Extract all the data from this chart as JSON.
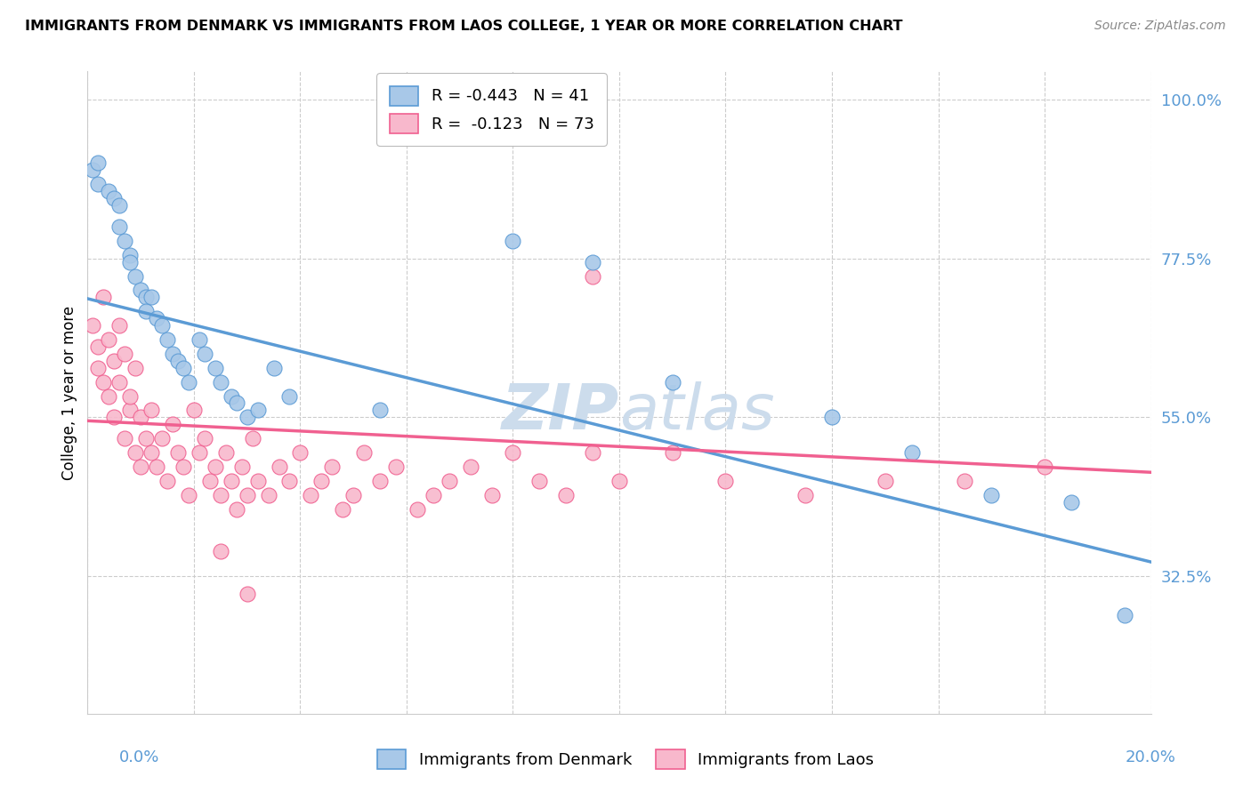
{
  "title": "IMMIGRANTS FROM DENMARK VS IMMIGRANTS FROM LAOS COLLEGE, 1 YEAR OR MORE CORRELATION CHART",
  "source": "Source: ZipAtlas.com",
  "ylabel": "College, 1 year or more",
  "right_yticks": [
    "100.0%",
    "77.5%",
    "55.0%",
    "32.5%"
  ],
  "right_ytick_vals": [
    1.0,
    0.775,
    0.55,
    0.325
  ],
  "xmin": 0.0,
  "xmax": 0.2,
  "ymin": 0.13,
  "ymax": 1.04,
  "legend_r_denmark": "-0.443",
  "legend_n_denmark": "41",
  "legend_r_laos": "-0.123",
  "legend_n_laos": "73",
  "denmark_color": "#a8c8e8",
  "laos_color": "#f8b8cc",
  "denmark_line_color": "#5b9bd5",
  "laos_line_color": "#f06090",
  "right_axis_color": "#5b9bd5",
  "watermark_color": "#ccdcec",
  "dk_line_x0": 0.0,
  "dk_line_y0": 0.718,
  "dk_line_x1": 0.2,
  "dk_line_y1": 0.345,
  "laos_line_x0": 0.0,
  "laos_line_y0": 0.545,
  "laos_line_x1": 0.2,
  "laos_line_y1": 0.472,
  "denmark_x": [
    0.001,
    0.002,
    0.002,
    0.004,
    0.005,
    0.006,
    0.006,
    0.007,
    0.008,
    0.008,
    0.009,
    0.01,
    0.011,
    0.011,
    0.012,
    0.013,
    0.014,
    0.015,
    0.016,
    0.017,
    0.018,
    0.019,
    0.021,
    0.022,
    0.024,
    0.025,
    0.027,
    0.028,
    0.03,
    0.032,
    0.035,
    0.038,
    0.055,
    0.08,
    0.095,
    0.11,
    0.14,
    0.155,
    0.17,
    0.185,
    0.195
  ],
  "denmark_y": [
    0.9,
    0.91,
    0.88,
    0.87,
    0.86,
    0.85,
    0.82,
    0.8,
    0.78,
    0.77,
    0.75,
    0.73,
    0.72,
    0.7,
    0.72,
    0.69,
    0.68,
    0.66,
    0.64,
    0.63,
    0.62,
    0.6,
    0.66,
    0.64,
    0.62,
    0.6,
    0.58,
    0.57,
    0.55,
    0.56,
    0.62,
    0.58,
    0.56,
    0.8,
    0.77,
    0.6,
    0.55,
    0.5,
    0.44,
    0.43,
    0.27
  ],
  "laos_x": [
    0.001,
    0.002,
    0.002,
    0.003,
    0.003,
    0.004,
    0.004,
    0.005,
    0.005,
    0.006,
    0.006,
    0.007,
    0.007,
    0.008,
    0.008,
    0.009,
    0.009,
    0.01,
    0.01,
    0.011,
    0.012,
    0.012,
    0.013,
    0.014,
    0.015,
    0.016,
    0.017,
    0.018,
    0.019,
    0.02,
    0.021,
    0.022,
    0.023,
    0.024,
    0.025,
    0.026,
    0.027,
    0.028,
    0.029,
    0.03,
    0.031,
    0.032,
    0.034,
    0.036,
    0.038,
    0.04,
    0.042,
    0.044,
    0.046,
    0.048,
    0.05,
    0.052,
    0.055,
    0.058,
    0.062,
    0.065,
    0.068,
    0.072,
    0.076,
    0.08,
    0.085,
    0.09,
    0.095,
    0.1,
    0.11,
    0.12,
    0.135,
    0.15,
    0.165,
    0.18,
    0.025,
    0.03,
    0.095
  ],
  "laos_y": [
    0.68,
    0.62,
    0.65,
    0.6,
    0.72,
    0.66,
    0.58,
    0.63,
    0.55,
    0.68,
    0.6,
    0.52,
    0.64,
    0.56,
    0.58,
    0.5,
    0.62,
    0.55,
    0.48,
    0.52,
    0.5,
    0.56,
    0.48,
    0.52,
    0.46,
    0.54,
    0.5,
    0.48,
    0.44,
    0.56,
    0.5,
    0.52,
    0.46,
    0.48,
    0.44,
    0.5,
    0.46,
    0.42,
    0.48,
    0.44,
    0.52,
    0.46,
    0.44,
    0.48,
    0.46,
    0.5,
    0.44,
    0.46,
    0.48,
    0.42,
    0.44,
    0.5,
    0.46,
    0.48,
    0.42,
    0.44,
    0.46,
    0.48,
    0.44,
    0.5,
    0.46,
    0.44,
    0.5,
    0.46,
    0.5,
    0.46,
    0.44,
    0.46,
    0.46,
    0.48,
    0.36,
    0.3,
    0.75
  ]
}
